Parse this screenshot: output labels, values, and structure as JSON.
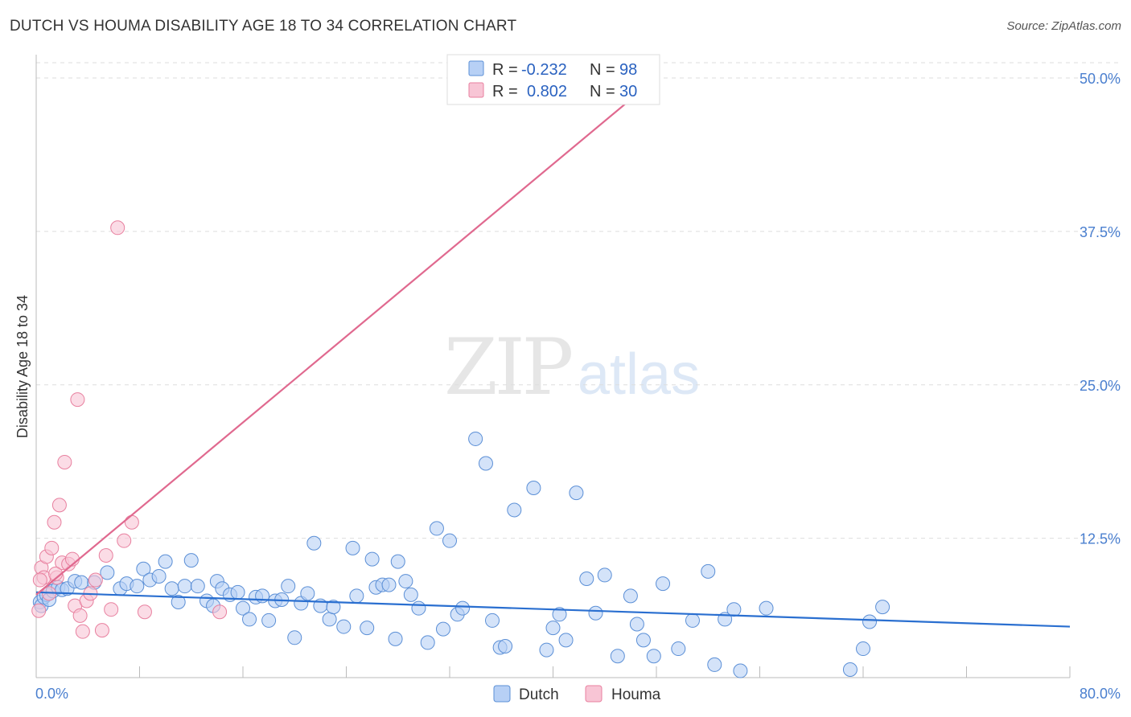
{
  "title": "DUTCH VS HOUMA DISABILITY AGE 18 TO 34 CORRELATION CHART",
  "source": "Source: ZipAtlas.com",
  "watermark": {
    "zip": "ZIP",
    "atlas": "atlas"
  },
  "colors": {
    "dutch_fill": "#b7d0f5",
    "dutch_stroke": "#5b8fd6",
    "dutch_line": "#2a6fd0",
    "houma_fill": "#f8c5d5",
    "houma_stroke": "#e8809f",
    "houma_line": "#e0698f",
    "tick_text": "#4a7fcf",
    "grid": "#dddddd"
  },
  "legend": {
    "rows": [
      {
        "r_label": "R =",
        "r_value": "-0.232",
        "n_label": "N =",
        "n_value": "98"
      },
      {
        "r_label": "R =",
        "r_value": "0.802",
        "n_label": "N =",
        "n_value": "30"
      }
    ]
  },
  "chart_data": {
    "type": "scatter",
    "title": "DUTCH VS HOUMA DISABILITY AGE 18 TO 34 CORRELATION CHART",
    "xlabel": "",
    "ylabel": "Disability Age 18 to 34",
    "xlim": [
      0,
      80
    ],
    "ylim": [
      0,
      50
    ],
    "x_tick_labels": [
      "0.0%",
      "80.0%"
    ],
    "y_ticks": [
      12.5,
      25.0,
      37.5,
      50.0
    ],
    "y_tick_labels": [
      "12.5%",
      "25.0%",
      "37.5%",
      "50.0%"
    ],
    "grid": "horizontal dashed",
    "legend_position": "top-center and bottom",
    "series": [
      {
        "name": "Dutch",
        "R": -0.232,
        "N": 98,
        "trend": {
          "x": [
            0,
            80
          ],
          "y": [
            8.1,
            5.3
          ]
        },
        "points": [
          [
            0.3,
            7.3
          ],
          [
            0.4,
            7.0
          ],
          [
            0.6,
            7.7
          ],
          [
            0.8,
            7.9
          ],
          [
            1.0,
            7.5
          ],
          [
            1.3,
            8.2
          ],
          [
            1.7,
            8.5
          ],
          [
            2.0,
            8.3
          ],
          [
            2.4,
            8.4
          ],
          [
            3.0,
            9.0
          ],
          [
            3.5,
            8.9
          ],
          [
            4.5,
            8.9
          ],
          [
            5.5,
            9.7
          ],
          [
            6.5,
            8.4
          ],
          [
            7.0,
            8.8
          ],
          [
            7.8,
            8.6
          ],
          [
            8.3,
            10.0
          ],
          [
            8.8,
            9.1
          ],
          [
            9.5,
            9.4
          ],
          [
            10.0,
            10.6
          ],
          [
            10.5,
            8.4
          ],
          [
            11.0,
            7.3
          ],
          [
            11.5,
            8.6
          ],
          [
            12.0,
            10.7
          ],
          [
            12.5,
            8.6
          ],
          [
            13.2,
            7.4
          ],
          [
            13.7,
            7.0
          ],
          [
            14.0,
            9.0
          ],
          [
            14.4,
            8.4
          ],
          [
            15.0,
            7.9
          ],
          [
            15.6,
            8.1
          ],
          [
            16.0,
            6.8
          ],
          [
            16.5,
            5.9
          ],
          [
            17.0,
            7.7
          ],
          [
            17.5,
            7.8
          ],
          [
            18.0,
            5.8
          ],
          [
            18.5,
            7.4
          ],
          [
            19.0,
            7.5
          ],
          [
            19.5,
            8.6
          ],
          [
            20.0,
            4.4
          ],
          [
            20.5,
            7.2
          ],
          [
            21.0,
            8.0
          ],
          [
            21.5,
            12.1
          ],
          [
            22.0,
            7.0
          ],
          [
            22.7,
            5.9
          ],
          [
            23.0,
            6.9
          ],
          [
            23.8,
            5.3
          ],
          [
            24.5,
            11.7
          ],
          [
            24.8,
            7.8
          ],
          [
            25.6,
            5.2
          ],
          [
            26.0,
            10.8
          ],
          [
            26.3,
            8.5
          ],
          [
            26.8,
            8.7
          ],
          [
            27.3,
            8.7
          ],
          [
            27.8,
            4.3
          ],
          [
            28.0,
            10.6
          ],
          [
            28.6,
            9.0
          ],
          [
            29.0,
            7.9
          ],
          [
            29.6,
            6.8
          ],
          [
            30.3,
            4.0
          ],
          [
            31.0,
            13.3
          ],
          [
            31.5,
            5.1
          ],
          [
            32.0,
            12.3
          ],
          [
            32.6,
            6.3
          ],
          [
            33.0,
            6.8
          ],
          [
            34.0,
            20.6
          ],
          [
            34.8,
            18.6
          ],
          [
            35.3,
            5.8
          ],
          [
            35.9,
            3.6
          ],
          [
            36.3,
            3.7
          ],
          [
            37.0,
            14.8
          ],
          [
            38.5,
            16.6
          ],
          [
            39.5,
            3.4
          ],
          [
            40.0,
            5.2
          ],
          [
            40.5,
            6.3
          ],
          [
            41.0,
            4.2
          ],
          [
            41.8,
            16.2
          ],
          [
            42.6,
            9.2
          ],
          [
            43.3,
            6.4
          ],
          [
            44.0,
            9.5
          ],
          [
            45.0,
            2.9
          ],
          [
            46.0,
            7.8
          ],
          [
            46.5,
            5.5
          ],
          [
            47.0,
            4.2
          ],
          [
            47.8,
            2.9
          ],
          [
            48.5,
            8.8
          ],
          [
            49.7,
            3.5
          ],
          [
            50.8,
            5.8
          ],
          [
            52.0,
            9.8
          ],
          [
            52.5,
            2.2
          ],
          [
            53.3,
            5.9
          ],
          [
            54.0,
            6.7
          ],
          [
            54.5,
            1.7
          ],
          [
            56.5,
            6.8
          ],
          [
            63.0,
            1.8
          ],
          [
            64.0,
            3.5
          ],
          [
            64.5,
            5.7
          ],
          [
            65.5,
            6.9
          ]
        ]
      },
      {
        "name": "Houma",
        "R": 0.802,
        "N": 30,
        "trend": {
          "x": [
            0,
            48
          ],
          "y": [
            7.9,
            50.0
          ]
        },
        "points": [
          [
            0.2,
            6.6
          ],
          [
            0.4,
            10.1
          ],
          [
            0.6,
            9.3
          ],
          [
            0.8,
            11.0
          ],
          [
            1.0,
            8.0
          ],
          [
            1.2,
            11.7
          ],
          [
            1.4,
            13.8
          ],
          [
            1.6,
            9.3
          ],
          [
            1.8,
            15.2
          ],
          [
            2.0,
            10.5
          ],
          [
            2.2,
            18.7
          ],
          [
            2.5,
            10.4
          ],
          [
            2.8,
            10.8
          ],
          [
            3.0,
            7.0
          ],
          [
            3.2,
            23.8
          ],
          [
            3.4,
            6.2
          ],
          [
            3.6,
            4.9
          ],
          [
            3.9,
            7.4
          ],
          [
            4.2,
            8.0
          ],
          [
            4.6,
            9.1
          ],
          [
            5.1,
            5.0
          ],
          [
            5.4,
            11.1
          ],
          [
            5.8,
            6.7
          ],
          [
            6.3,
            37.8
          ],
          [
            6.8,
            12.3
          ],
          [
            7.4,
            13.8
          ],
          [
            8.4,
            6.5
          ],
          [
            14.2,
            6.5
          ],
          [
            1.5,
            9.6
          ],
          [
            0.3,
            9.1
          ]
        ]
      }
    ]
  }
}
